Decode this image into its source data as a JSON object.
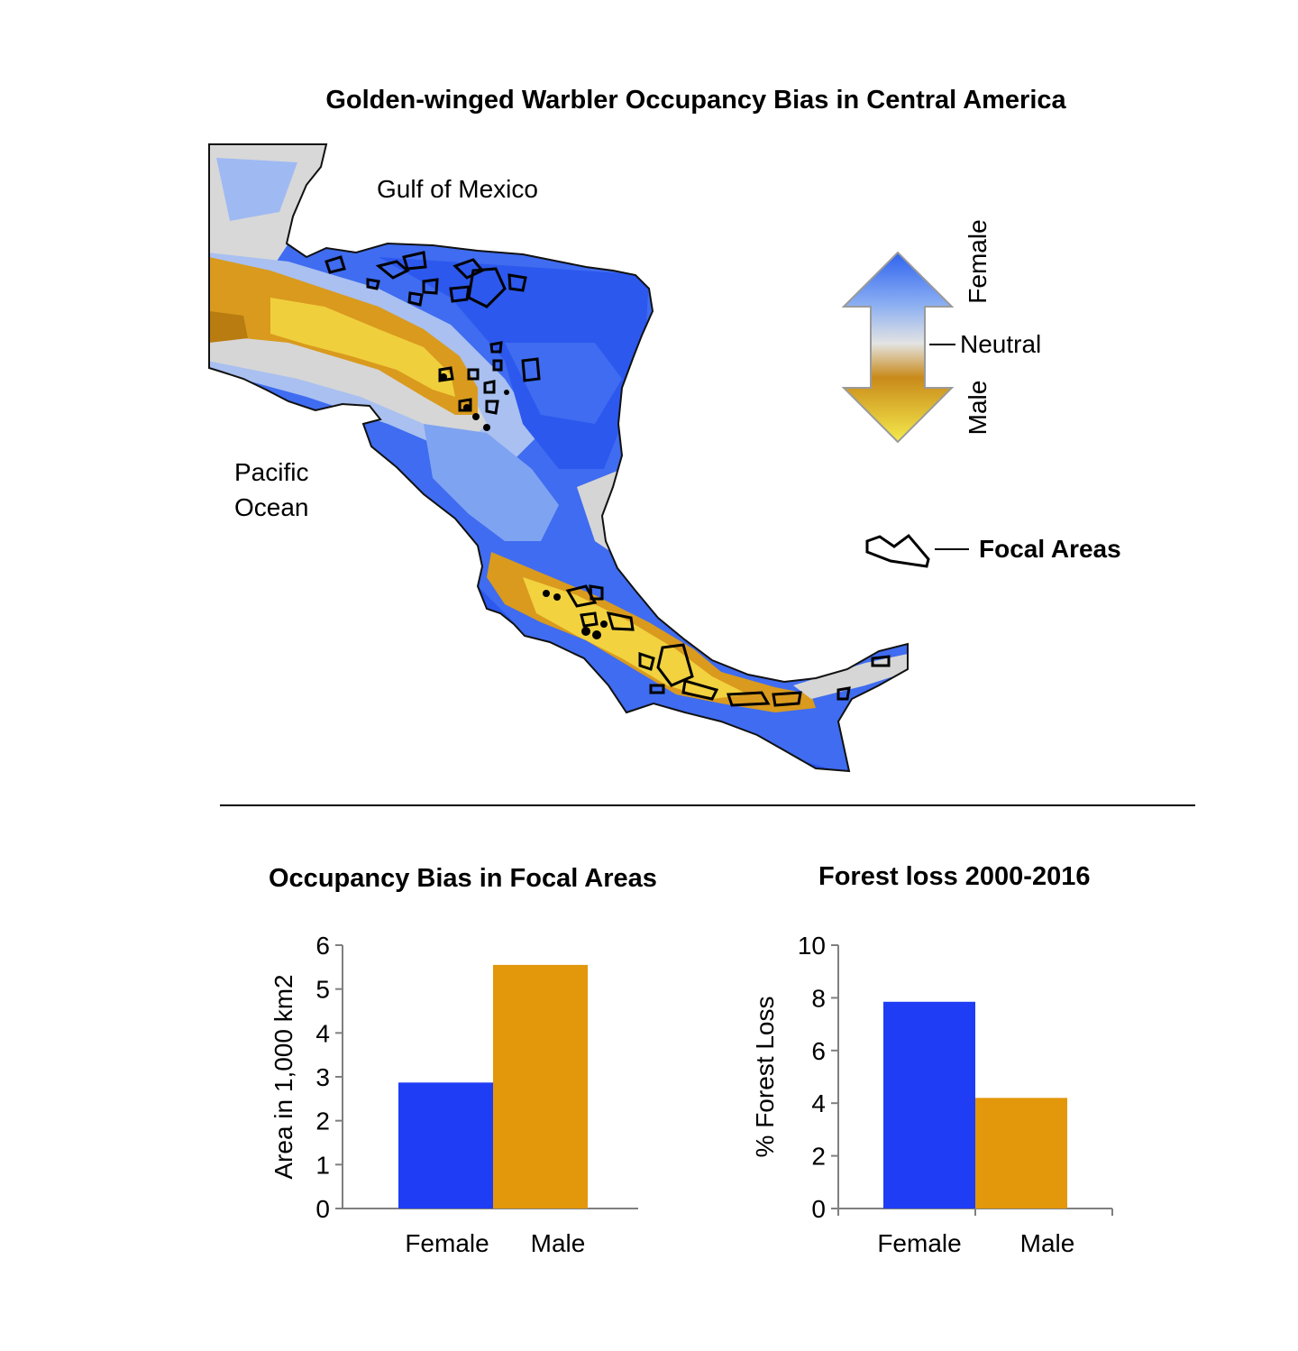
{
  "figure": {
    "title": "Golden-winged Warbler Occupancy Bias in Central America"
  },
  "map": {
    "labels": {
      "gulf": "Gulf of Mexico",
      "pacific_line1": "Pacific",
      "pacific_line2": "Ocean"
    },
    "legend": {
      "female": "Female",
      "neutral": "Neutral",
      "male": "Male",
      "focal_areas": "Focal Areas"
    },
    "colors": {
      "female": "#2d5bef",
      "female_light": "#8fb2f4",
      "neutral": "#dcdcdc",
      "male": "#c98a10",
      "male_light": "#f2dc3a"
    }
  },
  "chart_data": [
    {
      "type": "bar",
      "title": "Occupancy Bias in Focal Areas",
      "categories": [
        "Female",
        "Male"
      ],
      "values": [
        2.87,
        5.55
      ],
      "colors": [
        "#1f3df5",
        "#e3970a"
      ],
      "xlabel": "",
      "ylabel": "Area in 1,000 km2",
      "ylim": [
        0,
        6
      ],
      "yticks": [
        "0",
        "1",
        "2",
        "3",
        "4",
        "5",
        "6"
      ],
      "grid": false
    },
    {
      "type": "bar",
      "title": "Forest loss 2000-2016",
      "categories": [
        "Female",
        "Male"
      ],
      "values": [
        7.85,
        4.2
      ],
      "colors": [
        "#1f3df5",
        "#e3970a"
      ],
      "xlabel": "",
      "ylabel": "% Forest Loss",
      "ylim": [
        0,
        10
      ],
      "yticks": [
        "0",
        "2",
        "4",
        "6",
        "8",
        "10"
      ],
      "grid": false
    }
  ]
}
